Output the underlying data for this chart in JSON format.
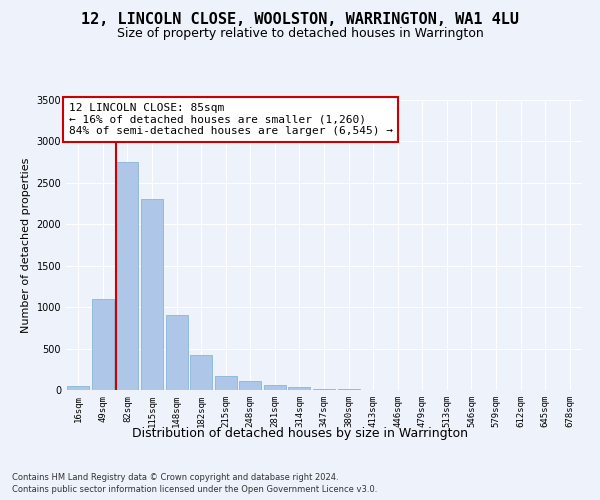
{
  "title": "12, LINCOLN CLOSE, WOOLSTON, WARRINGTON, WA1 4LU",
  "subtitle": "Size of property relative to detached houses in Warrington",
  "xlabel": "Distribution of detached houses by size in Warrington",
  "ylabel": "Number of detached properties",
  "categories": [
    "16sqm",
    "49sqm",
    "82sqm",
    "115sqm",
    "148sqm",
    "182sqm",
    "215sqm",
    "248sqm",
    "281sqm",
    "314sqm",
    "347sqm",
    "380sqm",
    "413sqm",
    "446sqm",
    "479sqm",
    "513sqm",
    "546sqm",
    "579sqm",
    "612sqm",
    "645sqm",
    "678sqm"
  ],
  "values": [
    50,
    1100,
    2750,
    2300,
    900,
    420,
    175,
    110,
    65,
    35,
    15,
    10,
    5,
    2,
    1,
    0,
    0,
    0,
    0,
    0,
    0
  ],
  "bar_color": "#aec6e8",
  "bar_edge_color": "#7aafd4",
  "vline_color": "#cc0000",
  "annotation_text": "12 LINCOLN CLOSE: 85sqm\n← 16% of detached houses are smaller (1,260)\n84% of semi-detached houses are larger (6,545) →",
  "annotation_box_color": "#ffffff",
  "annotation_box_edge": "#cc0000",
  "footnote1": "Contains HM Land Registry data © Crown copyright and database right 2024.",
  "footnote2": "Contains public sector information licensed under the Open Government Licence v3.0.",
  "background_color": "#eef2fa",
  "ylim": [
    0,
    3500
  ],
  "yticks": [
    0,
    500,
    1000,
    1500,
    2000,
    2500,
    3000,
    3500
  ],
  "title_fontsize": 11,
  "subtitle_fontsize": 9,
  "xlabel_fontsize": 9,
  "ylabel_fontsize": 8,
  "tick_fontsize": 7,
  "annotation_fontsize": 8
}
